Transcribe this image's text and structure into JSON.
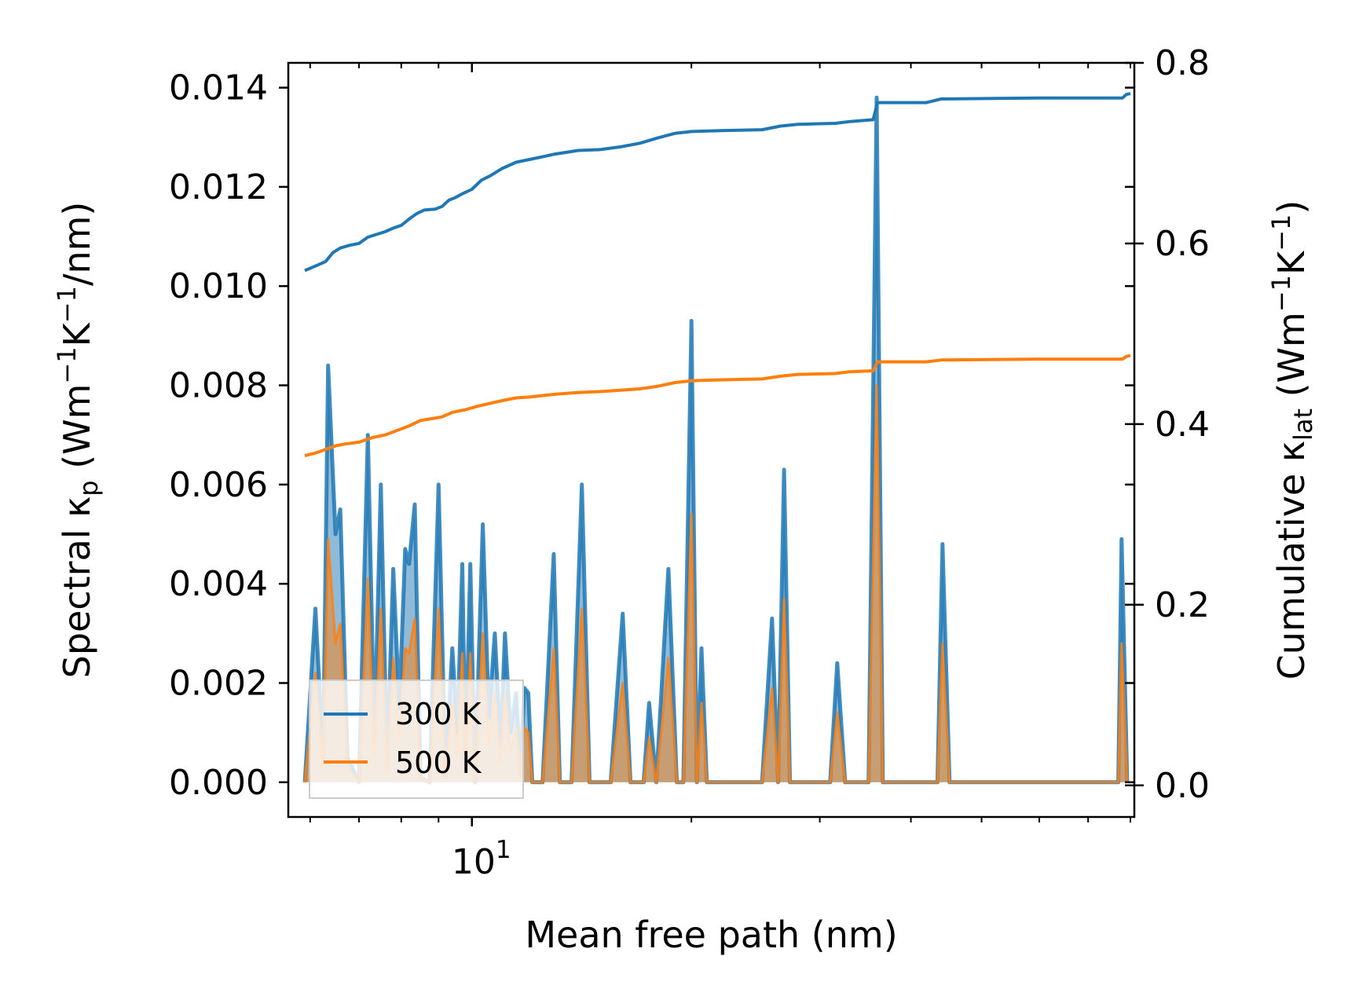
{
  "chart_data": {
    "type": "line",
    "xlabel": "Mean free path (nm)",
    "x_scale": "log",
    "x_tick_label_base": "10",
    "x_tick_label_exp": "1",
    "xlim": [
      5.6,
      81
    ],
    "y_left": {
      "label_pre": "Spectral κ",
      "label_sub": "p",
      "label_post": " (Wm",
      "label_sup1": "−1",
      "label_mid": "K",
      "label_sup2": "−1",
      "label_end": "/nm)",
      "ylim": [
        -0.0007,
        0.0145
      ],
      "ticks": [
        "0.000",
        "0.002",
        "0.004",
        "0.006",
        "0.008",
        "0.010",
        "0.012",
        "0.014"
      ]
    },
    "y_right": {
      "label_pre": "Cumulative κ",
      "label_sub": "lat",
      "label_post": " (Wm",
      "label_sup1": "−1",
      "label_mid": "K",
      "label_sup2": "−1",
      "label_end": ")",
      "ylim": [
        -0.035,
        0.8
      ],
      "ticks": [
        "0.0",
        "0.2",
        "0.4",
        "0.6",
        "0.8"
      ]
    },
    "legend": {
      "position": "lower-left",
      "entries": [
        "300 K",
        "500 K"
      ]
    },
    "colors": {
      "s300": "#1f77b4",
      "s500": "#ff7f0e"
    },
    "spectral_series": [
      {
        "name": "300 K",
        "points": [
          [
            5.9,
            0
          ],
          [
            6.1,
            0.0035
          ],
          [
            6.25,
            0.0005
          ],
          [
            6.35,
            0.0084
          ],
          [
            6.5,
            0.005
          ],
          [
            6.6,
            0.0055
          ],
          [
            6.75,
            0.0005
          ],
          [
            7.0,
            0
          ],
          [
            7.2,
            0.007
          ],
          [
            7.35,
            0.0008
          ],
          [
            7.5,
            0.006
          ],
          [
            7.65,
            0.0003
          ],
          [
            7.8,
            0.0043
          ],
          [
            7.95,
            0.0015
          ],
          [
            8.1,
            0.0047
          ],
          [
            8.2,
            0.0044
          ],
          [
            8.35,
            0.0056
          ],
          [
            8.5,
            0.0001
          ],
          [
            8.75,
            0
          ],
          [
            9.0,
            0.006
          ],
          [
            9.2,
            0.0001
          ],
          [
            9.4,
            0.0027
          ],
          [
            9.55,
            0.001
          ],
          [
            9.7,
            0.0044
          ],
          [
            9.8,
            0.0004
          ],
          [
            9.95,
            0.0044
          ],
          [
            10.1,
            0
          ],
          [
            10.35,
            0.0052
          ],
          [
            10.55,
            0.0013
          ],
          [
            10.75,
            0.003
          ],
          [
            10.95,
            0.0007
          ],
          [
            11.1,
            0.003
          ],
          [
            11.3,
            0.001
          ],
          [
            11.5,
            0.0018
          ],
          [
            11.65,
            0.0002
          ],
          [
            11.8,
            0.0019
          ],
          [
            11.95,
            0.0018
          ],
          [
            12.1,
            0
          ],
          [
            12.5,
            0
          ],
          [
            12.95,
            0.0046
          ],
          [
            13.2,
            0
          ],
          [
            13.7,
            0
          ],
          [
            14.15,
            0.006
          ],
          [
            14.5,
            0
          ],
          [
            15.5,
            0
          ],
          [
            16.1,
            0.0034
          ],
          [
            16.5,
            0
          ],
          [
            17.2,
            0
          ],
          [
            17.5,
            0.0016
          ],
          [
            17.9,
            0
          ],
          [
            18.6,
            0.0043
          ],
          [
            19.1,
            0
          ],
          [
            19.5,
            0
          ],
          [
            20.0,
            0.0093
          ],
          [
            20.35,
            0
          ],
          [
            20.65,
            0.0027
          ],
          [
            21.0,
            0
          ],
          [
            25.0,
            0
          ],
          [
            25.8,
            0.0033
          ],
          [
            26.3,
            0
          ],
          [
            26.8,
            0.0063
          ],
          [
            27.3,
            0
          ],
          [
            31.0,
            0
          ],
          [
            31.7,
            0.0024
          ],
          [
            32.5,
            0
          ],
          [
            35.0,
            0
          ],
          [
            35.9,
            0.0138
          ],
          [
            36.6,
            0
          ],
          [
            43.5,
            0
          ],
          [
            44.2,
            0.0048
          ],
          [
            45.2,
            0
          ],
          [
            77.0,
            0
          ],
          [
            77.8,
            0.0049
          ],
          [
            79.2,
            0
          ]
        ]
      },
      {
        "name": "500 K",
        "points": [
          [
            5.9,
            0
          ],
          [
            6.1,
            0.0022
          ],
          [
            6.25,
            0.0003
          ],
          [
            6.35,
            0.0049
          ],
          [
            6.5,
            0.0028
          ],
          [
            6.6,
            0.0032
          ],
          [
            6.75,
            0.0003
          ],
          [
            7.0,
            0
          ],
          [
            7.2,
            0.0041
          ],
          [
            7.35,
            0.0005
          ],
          [
            7.5,
            0.0035
          ],
          [
            7.65,
            0.0002
          ],
          [
            7.8,
            0.0025
          ],
          [
            7.95,
            0.0009
          ],
          [
            8.1,
            0.0027
          ],
          [
            8.2,
            0.0026
          ],
          [
            8.35,
            0.0033
          ],
          [
            8.5,
            0.0001
          ],
          [
            8.75,
            0
          ],
          [
            9.0,
            0.0035
          ],
          [
            9.2,
            0.0001
          ],
          [
            9.4,
            0.0016
          ],
          [
            9.55,
            0.0006
          ],
          [
            9.7,
            0.0026
          ],
          [
            9.8,
            0.0002
          ],
          [
            9.95,
            0.0026
          ],
          [
            10.1,
            0
          ],
          [
            10.35,
            0.003
          ],
          [
            10.55,
            0.0008
          ],
          [
            10.75,
            0.0018
          ],
          [
            10.95,
            0.0004
          ],
          [
            11.1,
            0.0018
          ],
          [
            11.3,
            0.0006
          ],
          [
            11.5,
            0.0011
          ],
          [
            11.65,
            0.0001
          ],
          [
            11.8,
            0.0011
          ],
          [
            11.95,
            0.001
          ],
          [
            12.1,
            0
          ],
          [
            12.5,
            0
          ],
          [
            12.95,
            0.0027
          ],
          [
            13.2,
            0
          ],
          [
            13.7,
            0
          ],
          [
            14.15,
            0.0035
          ],
          [
            14.5,
            0
          ],
          [
            15.5,
            0
          ],
          [
            16.1,
            0.002
          ],
          [
            16.5,
            0
          ],
          [
            17.2,
            0
          ],
          [
            17.5,
            0.0009
          ],
          [
            17.9,
            0
          ],
          [
            18.6,
            0.0025
          ],
          [
            19.1,
            0
          ],
          [
            19.5,
            0
          ],
          [
            20.0,
            0.0054
          ],
          [
            20.35,
            0
          ],
          [
            20.65,
            0.0016
          ],
          [
            21.0,
            0
          ],
          [
            25.0,
            0
          ],
          [
            25.8,
            0.0019
          ],
          [
            26.3,
            0
          ],
          [
            26.8,
            0.0037
          ],
          [
            27.3,
            0
          ],
          [
            31.0,
            0
          ],
          [
            31.7,
            0.0014
          ],
          [
            32.5,
            0
          ],
          [
            35.0,
            0
          ],
          [
            35.9,
            0.008
          ],
          [
            36.6,
            0
          ],
          [
            43.5,
            0
          ],
          [
            44.2,
            0.0028
          ],
          [
            45.2,
            0
          ],
          [
            77.0,
            0
          ],
          [
            77.8,
            0.0028
          ],
          [
            79.2,
            0
          ]
        ]
      }
    ],
    "cumulative_series": [
      {
        "name": "300 K",
        "points": [
          [
            5.9,
            0.57
          ],
          [
            6.1,
            0.575
          ],
          [
            6.3,
            0.58
          ],
          [
            6.45,
            0.59
          ],
          [
            6.6,
            0.595
          ],
          [
            6.8,
            0.598
          ],
          [
            7.0,
            0.6
          ],
          [
            7.2,
            0.607
          ],
          [
            7.4,
            0.61
          ],
          [
            7.6,
            0.613
          ],
          [
            7.8,
            0.617
          ],
          [
            8.0,
            0.62
          ],
          [
            8.2,
            0.627
          ],
          [
            8.4,
            0.633
          ],
          [
            8.6,
            0.637
          ],
          [
            8.9,
            0.638
          ],
          [
            9.1,
            0.641
          ],
          [
            9.3,
            0.648
          ],
          [
            9.5,
            0.651
          ],
          [
            9.7,
            0.655
          ],
          [
            10.0,
            0.66
          ],
          [
            10.3,
            0.67
          ],
          [
            10.6,
            0.675
          ],
          [
            11.0,
            0.683
          ],
          [
            11.5,
            0.69
          ],
          [
            12.0,
            0.693
          ],
          [
            12.5,
            0.696
          ],
          [
            13.0,
            0.699
          ],
          [
            14.0,
            0.703
          ],
          [
            15.0,
            0.704
          ],
          [
            16.0,
            0.707
          ],
          [
            17.0,
            0.711
          ],
          [
            18.0,
            0.717
          ],
          [
            19.0,
            0.722
          ],
          [
            20.0,
            0.724
          ],
          [
            22.0,
            0.725
          ],
          [
            25.0,
            0.726
          ],
          [
            26.5,
            0.73
          ],
          [
            28.0,
            0.732
          ],
          [
            31.5,
            0.733
          ],
          [
            33.0,
            0.735
          ],
          [
            35.5,
            0.737
          ],
          [
            36.0,
            0.756
          ],
          [
            42.0,
            0.756
          ],
          [
            44.0,
            0.76
          ],
          [
            60.0,
            0.761
          ],
          [
            78.0,
            0.761
          ],
          [
            79.0,
            0.765
          ],
          [
            80.0,
            0.766
          ]
        ]
      },
      {
        "name": "500 K",
        "points": [
          [
            5.9,
            0.365
          ],
          [
            6.1,
            0.368
          ],
          [
            6.3,
            0.372
          ],
          [
            6.5,
            0.376
          ],
          [
            6.7,
            0.378
          ],
          [
            7.0,
            0.38
          ],
          [
            7.3,
            0.385
          ],
          [
            7.6,
            0.388
          ],
          [
            7.9,
            0.393
          ],
          [
            8.2,
            0.398
          ],
          [
            8.5,
            0.404
          ],
          [
            8.8,
            0.406
          ],
          [
            9.1,
            0.408
          ],
          [
            9.4,
            0.413
          ],
          [
            9.8,
            0.416
          ],
          [
            10.2,
            0.42
          ],
          [
            10.6,
            0.423
          ],
          [
            11.0,
            0.426
          ],
          [
            11.5,
            0.429
          ],
          [
            12.0,
            0.43
          ],
          [
            13.0,
            0.433
          ],
          [
            14.0,
            0.435
          ],
          [
            15.0,
            0.436
          ],
          [
            17.0,
            0.439
          ],
          [
            18.0,
            0.442
          ],
          [
            19.0,
            0.446
          ],
          [
            20.0,
            0.448
          ],
          [
            22.0,
            0.449
          ],
          [
            25.0,
            0.45
          ],
          [
            26.5,
            0.453
          ],
          [
            28.0,
            0.455
          ],
          [
            31.5,
            0.456
          ],
          [
            33.0,
            0.458
          ],
          [
            35.5,
            0.459
          ],
          [
            36.0,
            0.469
          ],
          [
            42.0,
            0.469
          ],
          [
            44.0,
            0.471
          ],
          [
            60.0,
            0.472
          ],
          [
            78.0,
            0.472
          ],
          [
            79.0,
            0.475
          ],
          [
            80.0,
            0.476
          ]
        ]
      }
    ]
  }
}
